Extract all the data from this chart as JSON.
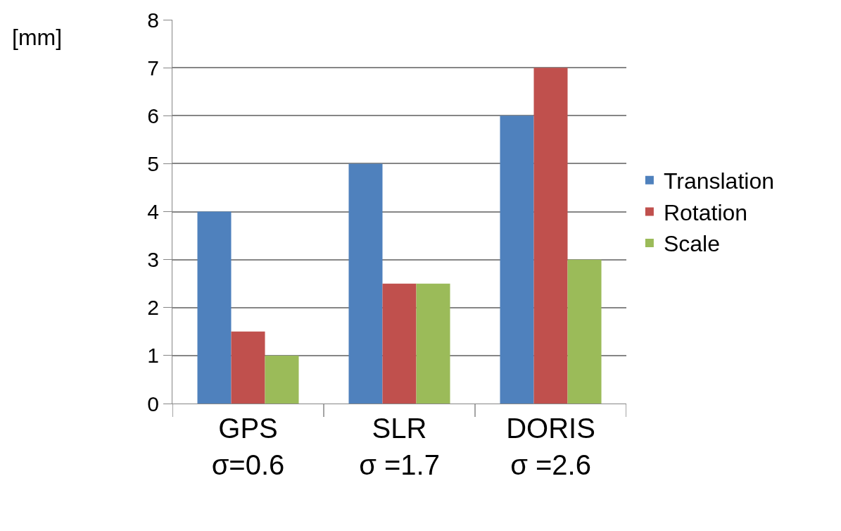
{
  "chart_data": {
    "type": "bar",
    "ylabel": "[mm]",
    "categories": [
      "GPS\nσ=0.6",
      "SLR\nσ =1.7",
      "DORIS\nσ =2.6"
    ],
    "series": [
      {
        "name": "Translation",
        "color": "#4f81bd",
        "values": [
          4,
          5,
          6
        ]
      },
      {
        "name": "Rotation",
        "color": "#c0504d",
        "values": [
          1.5,
          2.5,
          7
        ]
      },
      {
        "name": "Scale",
        "color": "#9bbb59",
        "values": [
          1,
          2.5,
          3
        ]
      }
    ],
    "ylim": [
      0,
      8
    ],
    "yticks": [
      0,
      1,
      2,
      3,
      4,
      5,
      6,
      7,
      8
    ],
    "grid": "y",
    "legend": "right"
  }
}
